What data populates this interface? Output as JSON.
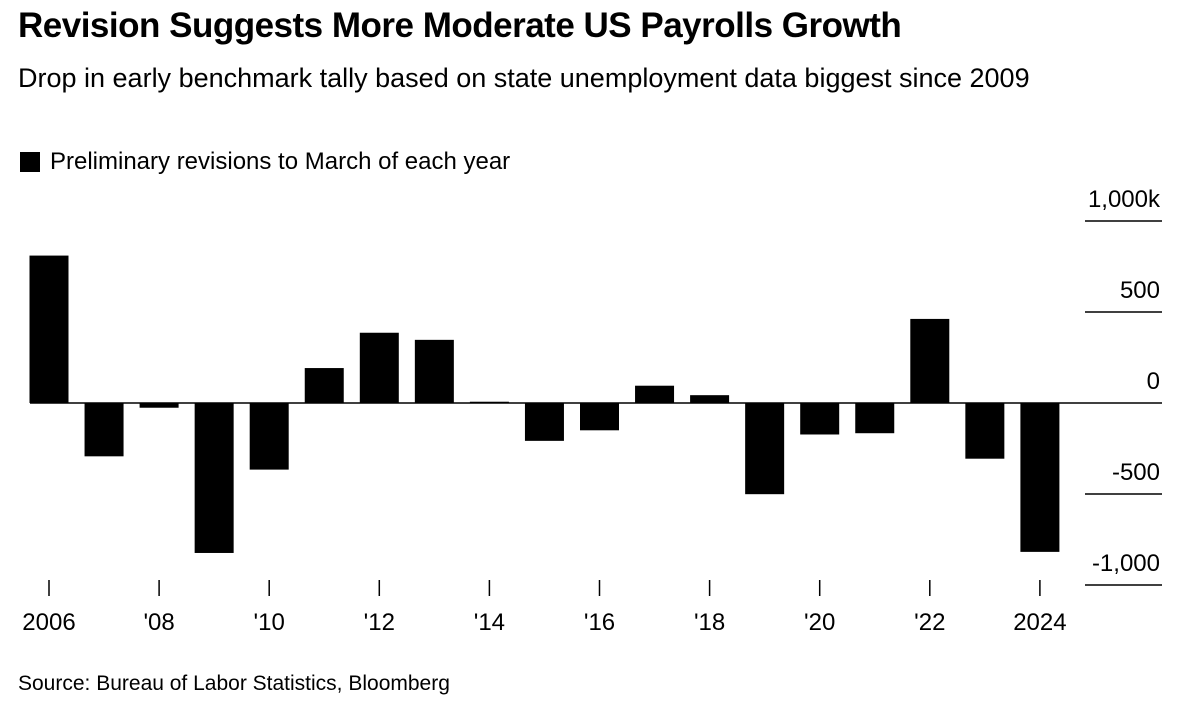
{
  "chart_data": {
    "type": "bar",
    "title": "Revision Suggests More Moderate US Payrolls Growth",
    "subtitle": "Drop in early benchmark tally based on state unemployment data biggest since 2009",
    "legend": "Preliminary revisions to March of each year",
    "legend_placement": "top-left",
    "source": "Source: Bureau of Labor Statistics, Bloomberg",
    "color": "#000000",
    "categories": [
      "2006",
      "2007",
      "2008",
      "2009",
      "2010",
      "2011",
      "2012",
      "2013",
      "2014",
      "2015",
      "2016",
      "2017",
      "2018",
      "2019",
      "2020",
      "2021",
      "2022",
      "2023",
      "2024"
    ],
    "values": [
      810,
      -293,
      -26,
      -824,
      -366,
      192,
      386,
      347,
      7,
      -208,
      -150,
      95,
      43,
      -501,
      -173,
      -166,
      462,
      -306,
      -818
    ],
    "x_tick_labels": [
      {
        "index": 0,
        "label": "2006"
      },
      {
        "index": 2,
        "label": "'08"
      },
      {
        "index": 4,
        "label": "'10"
      },
      {
        "index": 6,
        "label": "'12"
      },
      {
        "index": 8,
        "label": "'14"
      },
      {
        "index": 10,
        "label": "'16"
      },
      {
        "index": 12,
        "label": "'18"
      },
      {
        "index": 14,
        "label": "'20"
      },
      {
        "index": 16,
        "label": "'22"
      },
      {
        "index": 18,
        "label": "2024"
      }
    ],
    "y_ticks": [
      {
        "value": 1000,
        "label": "1,000k"
      },
      {
        "value": 500,
        "label": "500"
      },
      {
        "value": 0,
        "label": "0"
      },
      {
        "value": -500,
        "label": "-500"
      },
      {
        "value": -1000,
        "label": "-1,000"
      }
    ],
    "ylim": [
      -1000,
      1000
    ],
    "xlabel": "",
    "ylabel": "",
    "grid": true
  }
}
